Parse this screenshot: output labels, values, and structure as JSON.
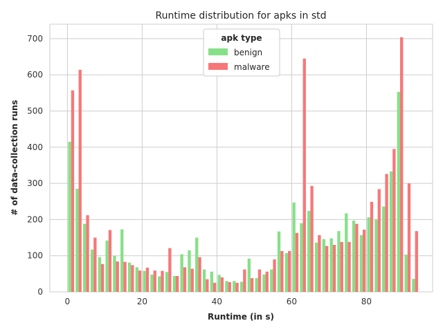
{
  "chart_data": {
    "type": "bar",
    "title": "Runtime distribution for apks in std",
    "xlabel": "Runtime (in s)",
    "ylabel": "# of data-collection runs",
    "xlim": [
      -4.7,
      97.7
    ],
    "ylim": [
      0,
      740
    ],
    "xticks": [
      0,
      20,
      40,
      60,
      80
    ],
    "yticks": [
      0,
      100,
      200,
      300,
      400,
      500,
      600,
      700
    ],
    "grid": true,
    "bin_width": 2,
    "legend": {
      "title": "apk type",
      "placement": "top-center"
    },
    "x": [
      1,
      3,
      5,
      7,
      9,
      11,
      13,
      15,
      17,
      19,
      21,
      23,
      25,
      27,
      29,
      31,
      33,
      35,
      37,
      39,
      41,
      43,
      45,
      47,
      49,
      51,
      53,
      55,
      57,
      59,
      61,
      63,
      65,
      67,
      69,
      71,
      73,
      75,
      77,
      79,
      81,
      83,
      85,
      87,
      89,
      91,
      93
    ],
    "series": [
      {
        "name": "benign",
        "color": "#86e087",
        "values": [
          415,
          285,
          188,
          117,
          96,
          142,
          100,
          173,
          81,
          68,
          58,
          48,
          43,
          55,
          44,
          104,
          115,
          150,
          62,
          56,
          47,
          30,
          30,
          28,
          92,
          38,
          48,
          62,
          167,
          107,
          247,
          190,
          224,
          136,
          146,
          148,
          168,
          217,
          197,
          157,
          206,
          200,
          236,
          333,
          553,
          103,
          36
        ]
      },
      {
        "name": "malware",
        "color": "#f77778",
        "values": [
          557,
          614,
          212,
          150,
          77,
          171,
          84,
          83,
          74,
          59,
          67,
          59,
          58,
          121,
          44,
          68,
          64,
          96,
          35,
          25,
          40,
          27,
          25,
          62,
          38,
          62,
          56,
          90,
          113,
          113,
          163,
          645,
          293,
          157,
          127,
          130,
          138,
          138,
          188,
          172,
          249,
          284,
          326,
          395,
          704,
          300,
          168
        ]
      }
    ]
  }
}
